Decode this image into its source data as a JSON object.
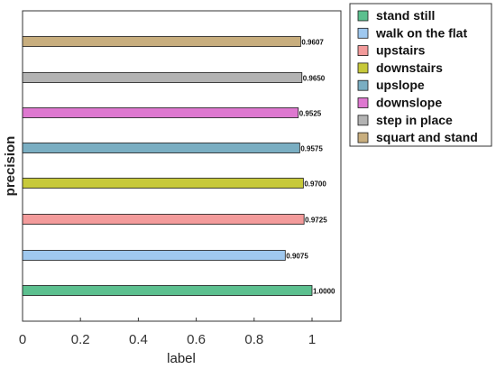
{
  "chart_data": {
    "type": "bar",
    "orientation": "horizontal",
    "xlabel": "label",
    "ylabel": "precision",
    "xlim": [
      0,
      1.1
    ],
    "xticks": [
      {
        "value": 0,
        "label": "0"
      },
      {
        "value": 0.2,
        "label": "0.2"
      },
      {
        "value": 0.4,
        "label": "0.4"
      },
      {
        "value": 0.6,
        "label": "0.6"
      },
      {
        "value": 0.8,
        "label": "0.8"
      },
      {
        "value": 1,
        "label": "1"
      }
    ],
    "grid": false,
    "legend_position": "outside right, top",
    "series": [
      {
        "name": "stand still",
        "value": 1.0,
        "value_label": "1.0000",
        "color": "#5cc08f"
      },
      {
        "name": "walk on the flat",
        "value": 0.9075,
        "value_label": "0.9075",
        "color": "#9fc8ef"
      },
      {
        "name": "upstairs",
        "value": 0.9725,
        "value_label": "0.9725",
        "color": "#f39b9b"
      },
      {
        "name": "downstairs",
        "value": 0.97,
        "value_label": "0.9700",
        "color": "#c7c93a"
      },
      {
        "name": "upslope",
        "value": 0.9575,
        "value_label": "0.9575",
        "color": "#7aaec2"
      },
      {
        "name": "downslope",
        "value": 0.9525,
        "value_label": "0.9525",
        "color": "#de78d0"
      },
      {
        "name": "step in place",
        "value": 0.965,
        "value_label": "0.9650",
        "color": "#b3b3b3"
      },
      {
        "name": "squart and stand",
        "value": 0.9607,
        "value_label": "0.9607",
        "color": "#c8ae7e"
      }
    ]
  }
}
